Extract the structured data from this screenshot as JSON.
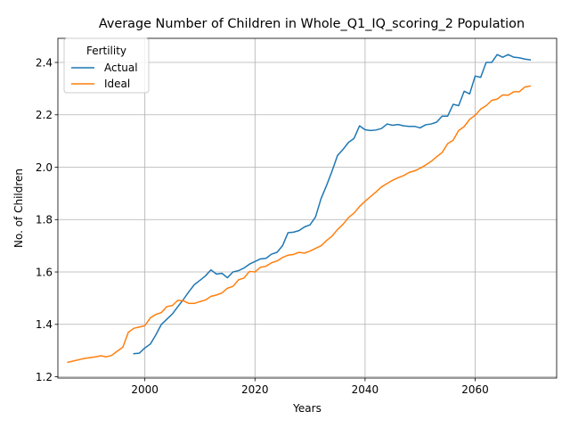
{
  "chart_data": {
    "type": "line",
    "title": "Average Number of Children in Whole_Q1_IQ_scoring_2 Population",
    "xlabel": "Years",
    "ylabel": "No. of Children",
    "xlim": [
      1984.2,
      2074.8
    ],
    "ylim": [
      1.195,
      2.492
    ],
    "xticks": [
      2000,
      2020,
      2040,
      2060
    ],
    "yticks": [
      1.2,
      1.4,
      1.6,
      1.8,
      2.0,
      2.2,
      2.4
    ],
    "grid": true,
    "legend": {
      "title": "Fertility",
      "position": "top-left"
    },
    "series": [
      {
        "name": "Actual",
        "color": "#1f77b4",
        "x": [
          1998,
          1999,
          2000,
          2001,
          2002,
          2003,
          2004,
          2005,
          2006,
          2007,
          2008,
          2009,
          2010,
          2011,
          2012,
          2013,
          2014,
          2015,
          2016,
          2017,
          2018,
          2019,
          2020,
          2021,
          2022,
          2023,
          2024,
          2025,
          2026,
          2027,
          2028,
          2029,
          2030,
          2031,
          2032,
          2033,
          2034,
          2035,
          2036,
          2037,
          2038,
          2039,
          2040,
          2041,
          2042,
          2043,
          2044,
          2045,
          2046,
          2047,
          2048,
          2049,
          2050,
          2051,
          2052,
          2053,
          2054,
          2055,
          2056,
          2057,
          2058,
          2059,
          2060,
          2061,
          2062,
          2063,
          2064,
          2065,
          2066,
          2067,
          2068,
          2069,
          2070
        ],
        "values": [
          1.288,
          1.29,
          1.31,
          1.325,
          1.36,
          1.4,
          1.42,
          1.44,
          1.468,
          1.495,
          1.525,
          1.552,
          1.568,
          1.585,
          1.608,
          1.592,
          1.595,
          1.578,
          1.6,
          1.605,
          1.615,
          1.63,
          1.64,
          1.65,
          1.652,
          1.668,
          1.675,
          1.7,
          1.75,
          1.752,
          1.758,
          1.772,
          1.78,
          1.81,
          1.88,
          1.93,
          1.985,
          2.045,
          2.068,
          2.095,
          2.11,
          2.158,
          2.143,
          2.14,
          2.142,
          2.148,
          2.165,
          2.16,
          2.163,
          2.158,
          2.156,
          2.156,
          2.15,
          2.162,
          2.165,
          2.172,
          2.195,
          2.195,
          2.24,
          2.235,
          2.29,
          2.28,
          2.348,
          2.343,
          2.4,
          2.4,
          2.43,
          2.42,
          2.43,
          2.42,
          2.418,
          2.413,
          2.41
        ]
      },
      {
        "name": "Ideal",
        "color": "#ff7f0e",
        "x": [
          1986,
          1987,
          1988,
          1989,
          1990,
          1991,
          1992,
          1993,
          1994,
          1995,
          1996,
          1997,
          1998,
          1999,
          2000,
          2001,
          2002,
          2003,
          2004,
          2005,
          2006,
          2007,
          2008,
          2009,
          2010,
          2011,
          2012,
          2013,
          2014,
          2015,
          2016,
          2017,
          2018,
          2019,
          2020,
          2021,
          2022,
          2023,
          2024,
          2025,
          2026,
          2027,
          2028,
          2029,
          2030,
          2031,
          2032,
          2033,
          2034,
          2035,
          2036,
          2037,
          2038,
          2039,
          2040,
          2041,
          2042,
          2043,
          2044,
          2045,
          2046,
          2047,
          2048,
          2049,
          2050,
          2051,
          2052,
          2053,
          2054,
          2055,
          2056,
          2057,
          2058,
          2059,
          2060,
          2061,
          2062,
          2063,
          2064,
          2065,
          2066,
          2067,
          2068,
          2069,
          2070
        ],
        "values": [
          1.255,
          1.26,
          1.265,
          1.27,
          1.273,
          1.276,
          1.28,
          1.276,
          1.282,
          1.298,
          1.313,
          1.37,
          1.385,
          1.39,
          1.395,
          1.425,
          1.438,
          1.445,
          1.468,
          1.472,
          1.492,
          1.49,
          1.48,
          1.48,
          1.487,
          1.493,
          1.507,
          1.512,
          1.52,
          1.538,
          1.545,
          1.57,
          1.577,
          1.602,
          1.6,
          1.618,
          1.622,
          1.635,
          1.642,
          1.655,
          1.664,
          1.667,
          1.675,
          1.672,
          1.68,
          1.69,
          1.7,
          1.72,
          1.737,
          1.762,
          1.782,
          1.808,
          1.825,
          1.85,
          1.87,
          1.888,
          1.906,
          1.925,
          1.938,
          1.95,
          1.96,
          1.968,
          1.98,
          1.986,
          1.996,
          2.008,
          2.022,
          2.04,
          2.056,
          2.09,
          2.103,
          2.14,
          2.155,
          2.183,
          2.198,
          2.222,
          2.235,
          2.255,
          2.26,
          2.276,
          2.275,
          2.288,
          2.288,
          2.306,
          2.31
        ]
      }
    ]
  }
}
